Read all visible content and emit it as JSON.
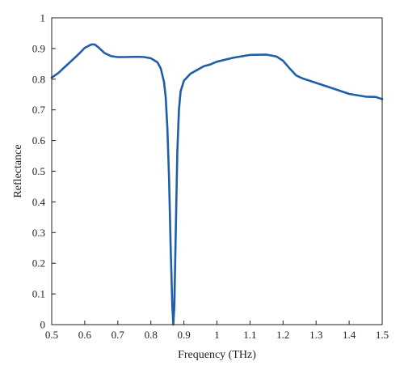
{
  "chart_data": {
    "type": "line",
    "title": "",
    "xlabel": "Frequency (THz)",
    "ylabel": "Reflectance",
    "xlim": [
      0.5,
      1.5
    ],
    "ylim": [
      0,
      1
    ],
    "xticks": [
      "0.5",
      "0.6",
      "0.7",
      "0.8",
      "0.9",
      "1",
      "1.1",
      "1.2",
      "1.3",
      "1.4",
      "1.5"
    ],
    "yticks": [
      "0",
      "0.1",
      "0.2",
      "0.3",
      "0.4",
      "0.5",
      "0.6",
      "0.7",
      "0.8",
      "0.9",
      "1"
    ],
    "grid": false,
    "legend": "none",
    "series": [
      {
        "color": "#1f5fa8",
        "points": [
          [
            0.5,
            0.805
          ],
          [
            0.52,
            0.82
          ],
          [
            0.54,
            0.84
          ],
          [
            0.56,
            0.86
          ],
          [
            0.58,
            0.88
          ],
          [
            0.6,
            0.902
          ],
          [
            0.62,
            0.913
          ],
          [
            0.63,
            0.913
          ],
          [
            0.64,
            0.905
          ],
          [
            0.66,
            0.885
          ],
          [
            0.68,
            0.875
          ],
          [
            0.7,
            0.872
          ],
          [
            0.72,
            0.872
          ],
          [
            0.76,
            0.873
          ],
          [
            0.78,
            0.872
          ],
          [
            0.8,
            0.868
          ],
          [
            0.82,
            0.855
          ],
          [
            0.83,
            0.835
          ],
          [
            0.84,
            0.79
          ],
          [
            0.845,
            0.74
          ],
          [
            0.85,
            0.64
          ],
          [
            0.855,
            0.48
          ],
          [
            0.86,
            0.25
          ],
          [
            0.865,
            0.06
          ],
          [
            0.868,
            0.0
          ],
          [
            0.871,
            0.06
          ],
          [
            0.875,
            0.28
          ],
          [
            0.88,
            0.56
          ],
          [
            0.885,
            0.7
          ],
          [
            0.89,
            0.76
          ],
          [
            0.9,
            0.795
          ],
          [
            0.92,
            0.818
          ],
          [
            0.94,
            0.83
          ],
          [
            0.96,
            0.842
          ],
          [
            0.98,
            0.848
          ],
          [
            1.0,
            0.857
          ],
          [
            1.05,
            0.87
          ],
          [
            1.1,
            0.879
          ],
          [
            1.15,
            0.88
          ],
          [
            1.18,
            0.874
          ],
          [
            1.2,
            0.86
          ],
          [
            1.22,
            0.835
          ],
          [
            1.24,
            0.812
          ],
          [
            1.26,
            0.802
          ],
          [
            1.3,
            0.788
          ],
          [
            1.35,
            0.77
          ],
          [
            1.4,
            0.752
          ],
          [
            1.45,
            0.743
          ],
          [
            1.48,
            0.742
          ],
          [
            1.5,
            0.735
          ]
        ]
      }
    ]
  }
}
